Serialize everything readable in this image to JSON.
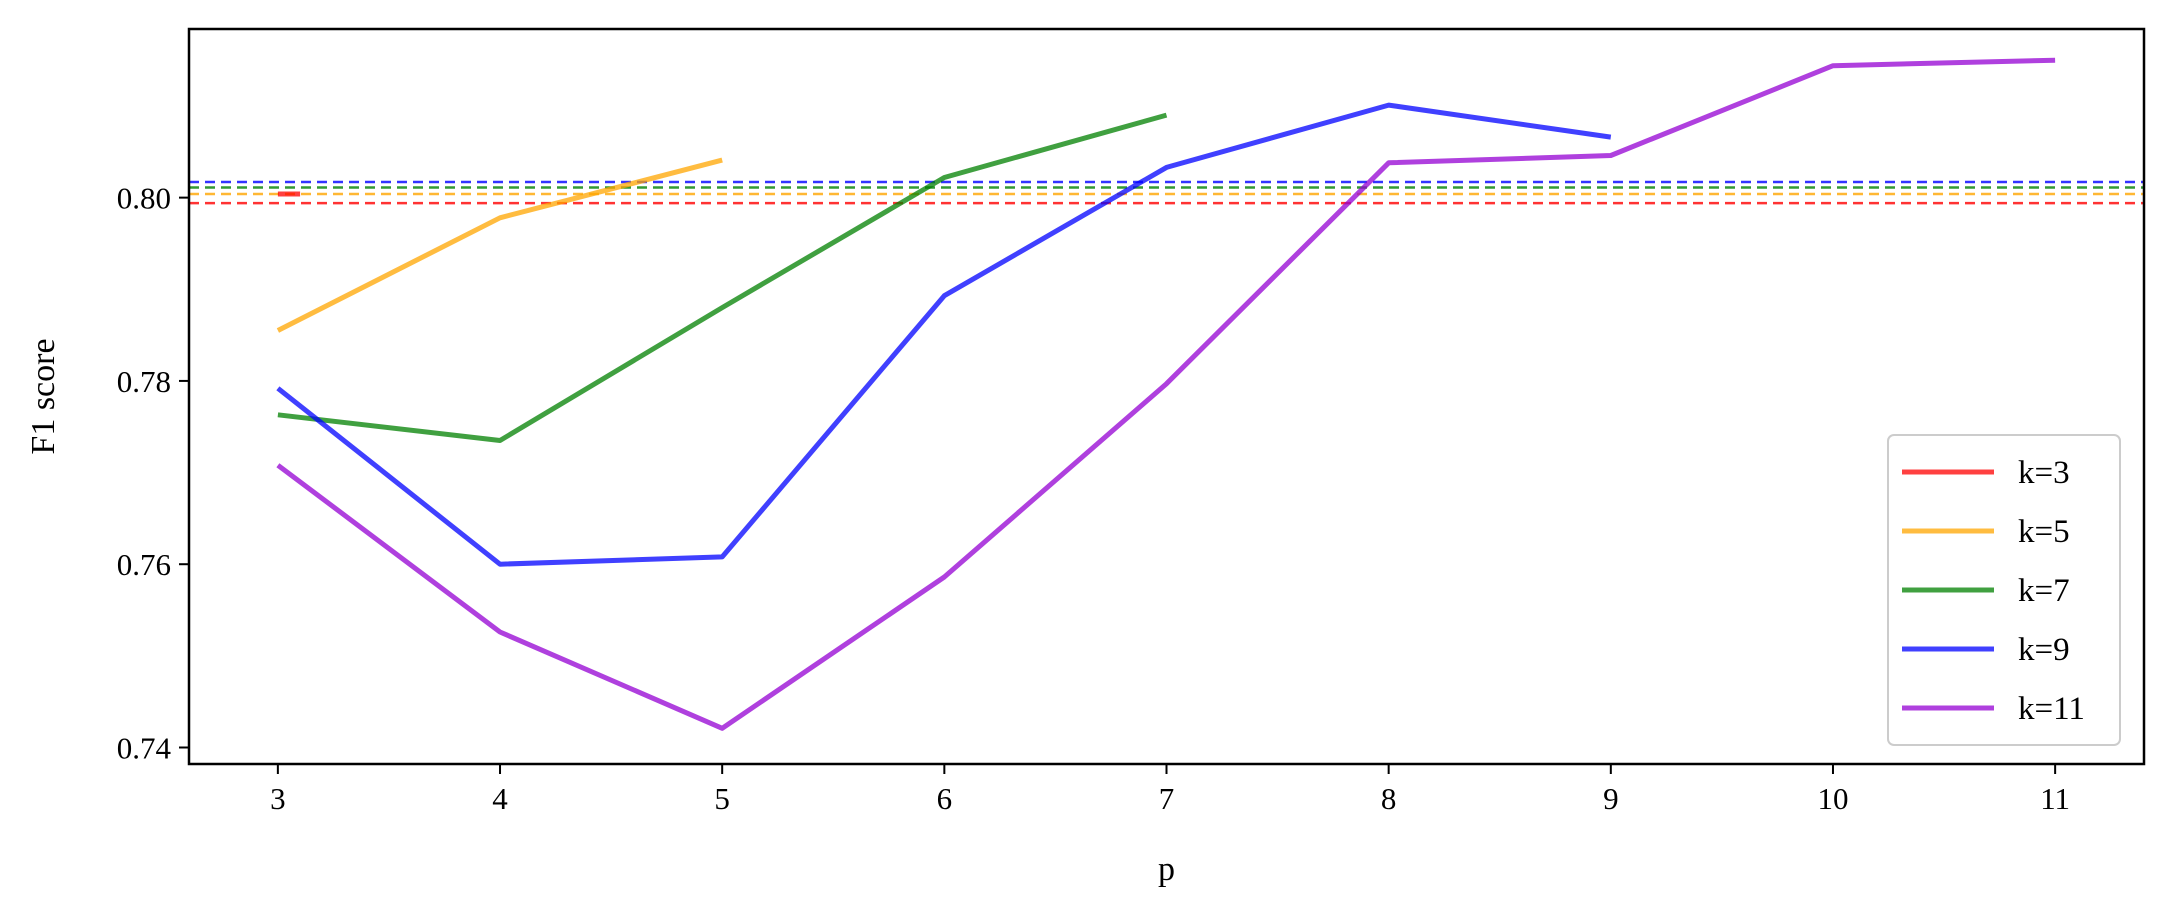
{
  "chart_data": {
    "type": "line",
    "xlabel": "p",
    "ylabel": "F1 score",
    "xlim": [
      2.6,
      11.4
    ],
    "ylim": [
      0.7382,
      0.8184
    ],
    "x_ticks": [
      3,
      4,
      5,
      6,
      7,
      8,
      9,
      10,
      11
    ],
    "y_ticks": [
      0.74,
      0.76,
      0.78,
      0.8
    ],
    "y_tick_labels": [
      "0.74",
      "0.76",
      "0.78",
      "0.80"
    ],
    "grid": false,
    "legend_position": "lower-right",
    "series": [
      {
        "name": "k=3",
        "color": "#ff0000",
        "x": [
          3,
          3.1
        ],
        "y": [
          0.8004,
          0.8004
        ]
      },
      {
        "name": "k=5",
        "color": "#ffa500",
        "x": [
          3,
          4,
          5
        ],
        "y": [
          0.7855,
          0.7978,
          0.8041
        ]
      },
      {
        "name": "k=7",
        "color": "#008000",
        "x": [
          3,
          4,
          5,
          6,
          7
        ],
        "y": [
          0.7763,
          0.7735,
          0.788,
          0.8022,
          0.809
        ]
      },
      {
        "name": "k=9",
        "color": "#0000ff",
        "x": [
          3,
          4,
          5,
          6,
          7,
          8,
          9
        ],
        "y": [
          0.7792,
          0.76,
          0.7608,
          0.7893,
          0.8033,
          0.8101,
          0.8066
        ]
      },
      {
        "name": "k=11",
        "color": "#9400d3",
        "x": [
          3,
          4,
          5,
          6,
          7,
          8,
          9,
          10,
          11
        ],
        "y": [
          0.7708,
          0.7526,
          0.7421,
          0.7586,
          0.7797,
          0.8038,
          0.8046,
          0.8144,
          0.815
        ]
      }
    ],
    "baselines": [
      {
        "color": "#ff0000",
        "y": 0.7994,
        "style": "dashed"
      },
      {
        "color": "#ffa500",
        "y": 0.8004,
        "style": "dashed"
      },
      {
        "color": "#008000",
        "y": 0.8011,
        "style": "dashed"
      },
      {
        "color": "#0000ff",
        "y": 0.8017,
        "style": "dashed"
      }
    ]
  }
}
